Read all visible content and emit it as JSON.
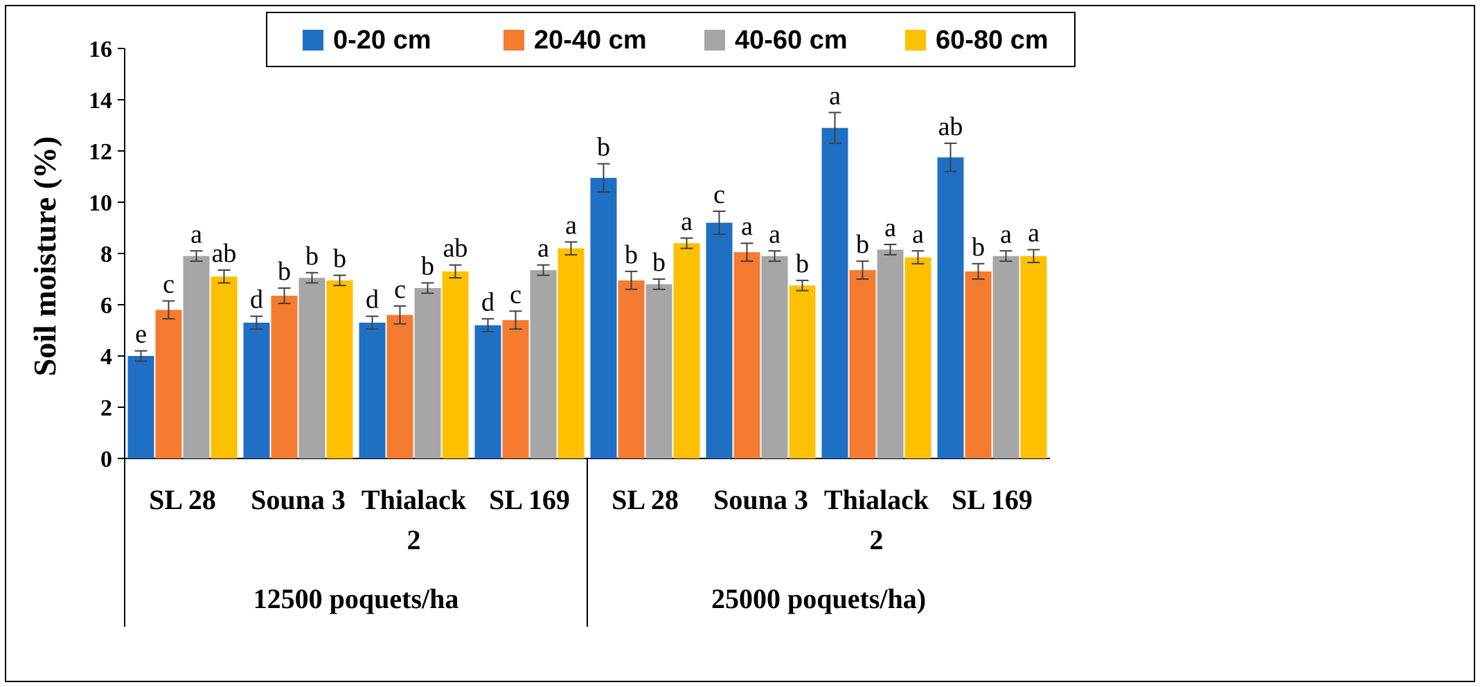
{
  "chart_data": {
    "type": "bar",
    "ylabel": "Soil moisture (%)",
    "ylim": [
      0,
      16
    ],
    "yticks": [
      "0",
      "2",
      "4",
      "6",
      "8",
      "10",
      "12",
      "14",
      "16"
    ],
    "legend_position": "top",
    "groups": [
      {
        "label": "12500 poquets/ha",
        "categories": [
          {
            "lines": [
              "SL 28"
            ]
          },
          {
            "lines": [
              "Souna 3"
            ]
          },
          {
            "lines": [
              "Thialack",
              "2"
            ]
          },
          {
            "lines": [
              "SL 169"
            ]
          }
        ]
      },
      {
        "label": "25000 poquets/ha)",
        "categories": [
          {
            "lines": [
              "SL 28"
            ]
          },
          {
            "lines": [
              "Souna 3"
            ]
          },
          {
            "lines": [
              "Thialack",
              "2"
            ]
          },
          {
            "lines": [
              "SL 169"
            ]
          }
        ]
      }
    ],
    "series": [
      {
        "name": "0-20 cm",
        "color": "#1F6FC5",
        "values": [
          4.0,
          5.3,
          5.3,
          5.2,
          10.95,
          9.2,
          12.9,
          11.75
        ],
        "errors": [
          0.2,
          0.25,
          0.25,
          0.25,
          0.55,
          0.45,
          0.6,
          0.55
        ],
        "letters": [
          "e",
          "d",
          "d",
          "d",
          "b",
          "c",
          "a",
          "ab"
        ]
      },
      {
        "name": "20-40 cm",
        "color": "#F47B30",
        "values": [
          5.8,
          6.35,
          5.6,
          5.4,
          6.95,
          8.05,
          7.35,
          7.3
        ],
        "errors": [
          0.35,
          0.3,
          0.35,
          0.35,
          0.35,
          0.35,
          0.35,
          0.3
        ],
        "letters": [
          "c",
          "b",
          "c",
          "c",
          "b",
          "a",
          "b",
          "b"
        ]
      },
      {
        "name": "40-60 cm",
        "color": "#A6A6A6",
        "values": [
          7.9,
          7.05,
          6.65,
          7.35,
          6.8,
          7.9,
          8.15,
          7.9
        ],
        "errors": [
          0.2,
          0.2,
          0.2,
          0.2,
          0.2,
          0.2,
          0.2,
          0.2
        ],
        "letters": [
          "a",
          "b",
          "b",
          "a",
          "b",
          "a",
          "a",
          "a"
        ]
      },
      {
        "name": "60-80 cm",
        "color": "#FFC000",
        "values": [
          7.1,
          6.95,
          7.3,
          8.2,
          8.4,
          6.75,
          7.85,
          7.9
        ],
        "errors": [
          0.25,
          0.2,
          0.25,
          0.25,
          0.2,
          0.2,
          0.25,
          0.25
        ],
        "letters": [
          "ab",
          "b",
          "ab",
          "a",
          "a",
          "b",
          "a",
          "a"
        ]
      }
    ]
  }
}
